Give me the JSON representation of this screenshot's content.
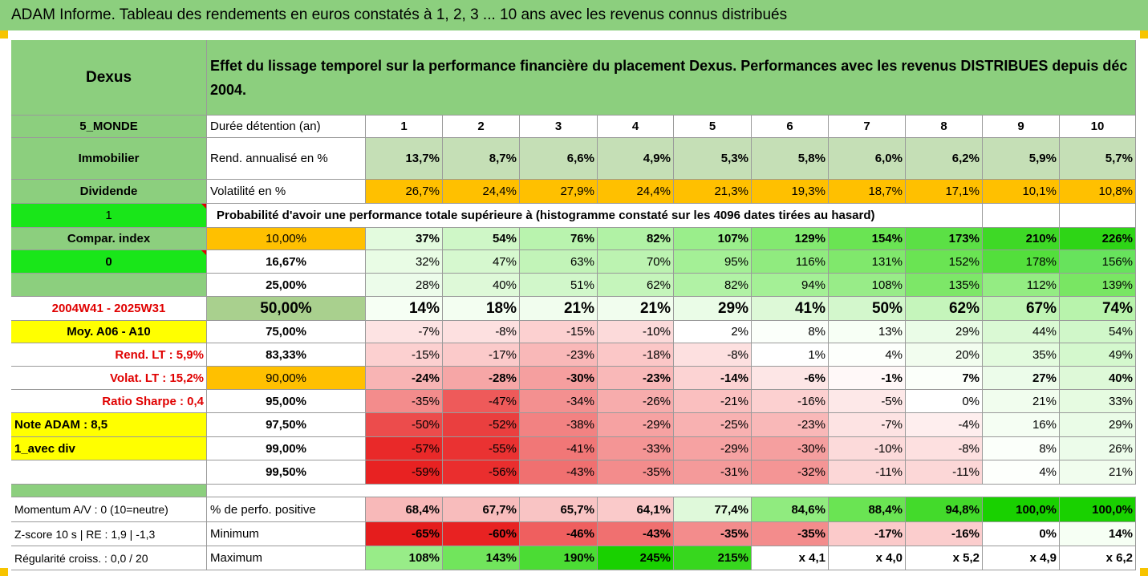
{
  "title": "ADAM Informe. Tableau des rendements en euros constatés à 1, 2, 3 ... 10 ans avec les revenus connus distribués",
  "fund": "Dexus",
  "description": "Effet du lissage temporel sur la performance financière du placement Dexus. Performances avec les revenus DISTRIBUES depuis déc 2004.",
  "left_labels": {
    "zone": "5_MONDE",
    "category": "Immobilier",
    "type": "Dividende",
    "value_1": "1",
    "compar": "Compar. index",
    "value_0": "0",
    "period": "2004W41 - 2025W31",
    "moy": "Moy. A06 - A10",
    "rend_lt": "Rend. LT :   5,9%",
    "volat_lt": "Volat. LT :   15,2%",
    "sharpe": "Ratio Sharpe :   0,4",
    "note": "Note ADAM : 8,5",
    "avec_div": "1_avec div",
    "momentum": "Momentum A/V : 0 (10=neutre)",
    "zscore": "Z-score 10 s  | RE : 1,9 | -1,3",
    "regularite": "Régularité croiss. : 0,0 / 20"
  },
  "header": {
    "duration_label": "Durée détention (an)",
    "years": [
      "1",
      "2",
      "3",
      "4",
      "5",
      "6",
      "7",
      "8",
      "9",
      "10"
    ]
  },
  "rend": {
    "label": "Rend. annualisé en %",
    "values": [
      "13,7%",
      "8,7%",
      "6,6%",
      "4,9%",
      "5,3%",
      "5,8%",
      "6,0%",
      "6,2%",
      "5,9%",
      "5,7%"
    ]
  },
  "vol": {
    "label": "Volatilité en %",
    "values": [
      "26,7%",
      "24,4%",
      "27,9%",
      "24,4%",
      "21,3%",
      "19,3%",
      "18,7%",
      "17,1%",
      "10,1%",
      "10,8%"
    ]
  },
  "prob_title": "Probabilité d'avoir une performance totale supérieure à (histogramme constaté sur les 4096 dates tirées au hasard)",
  "prob_rows": [
    {
      "p": "10,00%",
      "values": [
        "37%",
        "54%",
        "76%",
        "82%",
        "107%",
        "129%",
        "154%",
        "173%",
        "210%",
        "226%"
      ],
      "bg": [
        "#e3fbde",
        "#cff7c7",
        "#b9f3ae",
        "#b1f2a5",
        "#9aee8b",
        "#83e970",
        "#6ae453",
        "#5be045",
        "#3ed926",
        "#2ed516"
      ]
    },
    {
      "p": "16,67%",
      "values": [
        "32%",
        "47%",
        "63%",
        "70%",
        "95%",
        "116%",
        "131%",
        "152%",
        "178%",
        "156%"
      ],
      "bg": [
        "#e9fce5",
        "#d6f8cf",
        "#c2f4b8",
        "#bcf3b1",
        "#a4f096",
        "#90eb7f",
        "#80e86c",
        "#6ae453",
        "#53df3c",
        "#67e35c"
      ]
    },
    {
      "p": "25,00%",
      "values": [
        "28%",
        "40%",
        "51%",
        "62%",
        "82%",
        "94%",
        "108%",
        "135%",
        "112%",
        "139%"
      ],
      "bg": [
        "#ecfcea",
        "#def9d8",
        "#d1f7ca",
        "#c5f5bb",
        "#b1f2a5",
        "#a4f096",
        "#98ec88",
        "#7de768",
        "#94ec83",
        "#79e663"
      ]
    },
    {
      "p": "50,00%",
      "values": [
        "14%",
        "18%",
        "21%",
        "21%",
        "29%",
        "41%",
        "50%",
        "62%",
        "67%",
        "74%"
      ],
      "bg": [
        "#f6fff4",
        "#f3fef1",
        "#f1fdee",
        "#f1fdee",
        "#eafce7",
        "#ddf9d7",
        "#d3f7cc",
        "#c5f5bb",
        "#c0f4b5",
        "#b8f3ac"
      ]
    },
    {
      "p": "75,00%",
      "values": [
        "-7%",
        "-8%",
        "-15%",
        "-10%",
        "2%",
        "8%",
        "13%",
        "29%",
        "44%",
        "54%"
      ],
      "bg": [
        "#fde3e3",
        "#fde0e0",
        "#fcd0d0",
        "#fcdada",
        "#ffffff",
        "#fbfffa",
        "#f7fff5",
        "#eafce7",
        "#daf9d4",
        "#d0f7c9"
      ]
    },
    {
      "p": "83,33%",
      "values": [
        "-15%",
        "-17%",
        "-23%",
        "-18%",
        "-8%",
        "1%",
        "4%",
        "20%",
        "35%",
        "49%"
      ],
      "bg": [
        "#fcd0d0",
        "#fbcaca",
        "#f9b8b8",
        "#fbc7c7",
        "#fde0e0",
        "#ffffff",
        "#fdfffc",
        "#f2fdef",
        "#e3fbde",
        "#d4f8cd"
      ]
    },
    {
      "p": "90,00%",
      "values": [
        "-24%",
        "-28%",
        "-30%",
        "-23%",
        "-14%",
        "-6%",
        "-1%",
        "7%",
        "27%",
        "40%"
      ],
      "bg": [
        "#f8b4b4",
        "#f6a6a6",
        "#f59f9f",
        "#f9b8b8",
        "#fcd3d3",
        "#fde6e6",
        "#fff8f8",
        "#fbfffa",
        "#ecfcea",
        "#def9d8"
      ]
    },
    {
      "p": "95,00%",
      "values": [
        "-35%",
        "-47%",
        "-34%",
        "-26%",
        "-21%",
        "-16%",
        "-5%",
        "0%",
        "21%",
        "33%"
      ],
      "bg": [
        "#f38c8c",
        "#ee5a5a",
        "#f39090",
        "#f7acac",
        "#fabfbf",
        "#fcd0d0",
        "#fde8e8",
        "#ffffff",
        "#f1fdee",
        "#e6fbe1"
      ]
    },
    {
      "p": "97,50%",
      "values": [
        "-50%",
        "-52%",
        "-38%",
        "-29%",
        "-25%",
        "-23%",
        "-7%",
        "-4%",
        "16%",
        "29%"
      ],
      "bg": [
        "#ec4c4c",
        "#ea3f3f",
        "#f28282",
        "#f6a2a2",
        "#f8b1b1",
        "#f9b8b8",
        "#fde3e3",
        "#feeeee",
        "#f5fef3",
        "#eafce7"
      ]
    },
    {
      "p": "99,00%",
      "values": [
        "-57%",
        "-55%",
        "-41%",
        "-33%",
        "-29%",
        "-30%",
        "-10%",
        "-8%",
        "8%",
        "26%"
      ],
      "bg": [
        "#e92929",
        "#ea3232",
        "#f17777",
        "#f49595",
        "#f6a2a2",
        "#f59f9f",
        "#fcdada",
        "#fde0e0",
        "#fbfffa",
        "#ecfcea"
      ]
    },
    {
      "p": "99,50%",
      "values": [
        "-59%",
        "-56%",
        "-43%",
        "-35%",
        "-31%",
        "-32%",
        "-11%",
        "-11%",
        "4%",
        "21%"
      ],
      "bg": [
        "#e82222",
        "#ea2e2e",
        "#f07070",
        "#f38c8c",
        "#f49a9a",
        "#f49595",
        "#fcd7d7",
        "#fcd7d7",
        "#fdfffc",
        "#f1fdee"
      ]
    }
  ],
  "pos": {
    "label": "% de perfo. positive",
    "values": [
      "68,4%",
      "67,7%",
      "65,7%",
      "64,1%",
      "77,4%",
      "84,6%",
      "88,4%",
      "94,8%",
      "100,0%",
      "100,0%"
    ],
    "bg": [
      "#f8b9b9",
      "#f8bcbc",
      "#f9c4c4",
      "#facaca",
      "#dff9da",
      "#90eb7f",
      "#6ae453",
      "#43da2b",
      "#19d100",
      "#19d100"
    ]
  },
  "min": {
    "label": "Minimum",
    "values": [
      "-65%",
      "-60%",
      "-46%",
      "-43%",
      "-35%",
      "-35%",
      "-17%",
      "-16%",
      "0%",
      "14%"
    ],
    "bg": [
      "#e51d1d",
      "#e82222",
      "#ef5f5f",
      "#f07070",
      "#f38c8c",
      "#f38c8c",
      "#fbcaca",
      "#fbcdcd",
      "#ffffff",
      "#f6fff4"
    ]
  },
  "max": {
    "label": "Maximum",
    "values": [
      "108%",
      "143%",
      "190%",
      "245%",
      "215%",
      "x 4,1",
      "x 4,0",
      "x 5,2",
      "x 4,9",
      "x 6,2"
    ],
    "bg": [
      "#98ec88",
      "#71e55c",
      "#4bdc34",
      "#19d100",
      "#37d71e",
      "#ffffff",
      "#ffffff",
      "#ffffff",
      "#ffffff",
      "#ffffff"
    ]
  },
  "colors": {
    "header_green": "#8ccf7e",
    "rend_green": "#c5dfb6",
    "vol_orange": "#ffc000",
    "bright_green": "#19e619",
    "yellow": "#ffff00",
    "gray_green": "#92c98a",
    "olive_green": "#a9d08e",
    "red_text": "#e00000"
  }
}
